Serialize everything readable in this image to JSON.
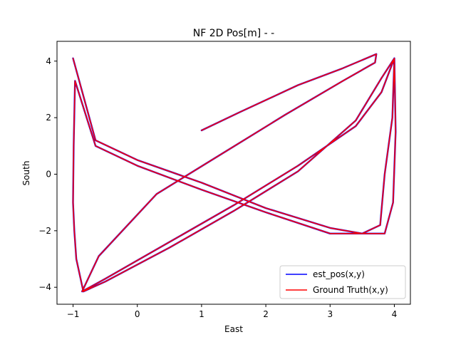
{
  "chart_data": {
    "type": "line",
    "title": "NF 2D Pos[m] -  -",
    "xlabel": "East",
    "ylabel": "South",
    "xlim": [
      -1.25,
      4.25
    ],
    "ylim": [
      -4.6,
      4.7
    ],
    "xticks": [
      -1,
      0,
      1,
      2,
      3,
      4
    ],
    "yticks": [
      -4,
      -2,
      0,
      2,
      4
    ],
    "grid": false,
    "legend_position": "lower right",
    "series": [
      {
        "name": "est_pos(x,y)",
        "color": "#0000ff",
        "x": [
          1.0,
          1.6,
          2.5,
          3.2,
          3.72,
          3.7,
          3.2,
          2.3,
          1.3,
          0.3,
          -0.6,
          -0.86,
          -0.5,
          0.5,
          1.5,
          2.5,
          3.4,
          3.8,
          4.0,
          3.97,
          3.85,
          3.78,
          3.5,
          3.0,
          2.0,
          1.0,
          0.0,
          -0.65,
          -0.97,
          -0.99,
          -1.0,
          -0.98,
          -0.95,
          -0.84,
          -0.5,
          0.5,
          1.5,
          2.5,
          3.4,
          3.8,
          4.0,
          4.02,
          3.98,
          3.85,
          3.5,
          3.0,
          2.0,
          1.0,
          0.0,
          -0.65,
          -1.0
        ],
        "y": [
          1.55,
          2.2,
          3.15,
          3.75,
          4.25,
          3.95,
          3.3,
          2.1,
          0.7,
          -0.7,
          -2.9,
          -4.15,
          -3.7,
          -2.4,
          -1.1,
          0.3,
          1.7,
          2.9,
          4.1,
          2.0,
          0.0,
          -1.8,
          -2.1,
          -2.1,
          -1.35,
          -0.55,
          0.3,
          1.0,
          3.3,
          1.0,
          -1.0,
          -2.0,
          -3.0,
          -4.15,
          -3.8,
          -2.6,
          -1.3,
          0.1,
          1.9,
          3.4,
          4.1,
          1.5,
          -1.0,
          -2.1,
          -2.1,
          -1.9,
          -1.2,
          -0.3,
          0.5,
          1.2,
          4.1
        ]
      },
      {
        "name": "Ground Truth(x,y)",
        "color": "#ff0000",
        "x": [
          1.0,
          1.6,
          2.5,
          3.2,
          3.72,
          3.7,
          3.2,
          2.3,
          1.3,
          0.3,
          -0.6,
          -0.86,
          -0.5,
          0.5,
          1.5,
          2.5,
          3.4,
          3.8,
          4.0,
          3.97,
          3.85,
          3.78,
          3.5,
          3.0,
          2.0,
          1.0,
          0.0,
          -0.65,
          -0.97,
          -0.99,
          -1.0,
          -0.98,
          -0.95,
          -0.84,
          -0.5,
          0.5,
          1.5,
          2.5,
          3.4,
          3.8,
          4.0,
          4.02,
          3.98,
          3.85,
          3.5,
          3.0,
          2.0,
          1.0,
          0.0,
          -0.65,
          -1.0
        ],
        "y": [
          1.55,
          2.2,
          3.15,
          3.75,
          4.25,
          3.95,
          3.3,
          2.1,
          0.7,
          -0.7,
          -2.9,
          -4.15,
          -3.7,
          -2.4,
          -1.1,
          0.3,
          1.7,
          2.9,
          4.1,
          2.0,
          0.0,
          -1.8,
          -2.1,
          -2.1,
          -1.35,
          -0.55,
          0.3,
          1.0,
          3.3,
          1.0,
          -1.0,
          -2.0,
          -3.0,
          -4.15,
          -3.8,
          -2.6,
          -1.3,
          0.1,
          1.9,
          3.4,
          4.1,
          1.5,
          -1.0,
          -2.1,
          -2.1,
          -1.9,
          -1.2,
          -0.3,
          0.5,
          1.2,
          4.1
        ]
      }
    ]
  }
}
